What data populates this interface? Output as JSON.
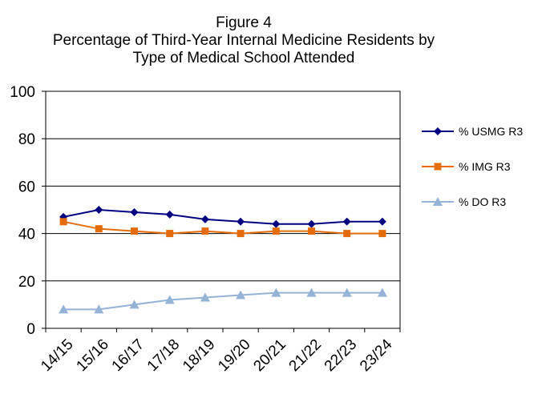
{
  "chart_data": {
    "type": "line",
    "title": "Figure 4",
    "subtitle_lines": [
      "Percentage of Third-Year Internal Medicine Residents by",
      "Type of Medical School Attended"
    ],
    "xlabel": "",
    "ylabel": "",
    "ylim": [
      0,
      100
    ],
    "yticks": [
      0,
      20,
      40,
      60,
      80,
      100
    ],
    "grid": true,
    "legend_position": "right",
    "categories": [
      "14/15",
      "15/16",
      "16/17",
      "17/18",
      "18/19",
      "19/20",
      "20/21",
      "21/22",
      "22/23",
      "23/24"
    ],
    "series": [
      {
        "name": "% USMG R3",
        "color": "#000080",
        "marker": "diamond",
        "values": [
          47,
          50,
          49,
          48,
          46,
          45,
          44,
          44,
          45,
          45
        ]
      },
      {
        "name": "% IMG R3",
        "color": "#E46C0A",
        "marker": "square",
        "values": [
          45,
          42,
          41,
          40,
          41,
          40,
          41,
          41,
          40,
          40
        ]
      },
      {
        "name": "% DO R3",
        "color": "#95B3D7",
        "marker": "triangle",
        "values": [
          8,
          8,
          10,
          12,
          13,
          14,
          15,
          15,
          15,
          15
        ]
      }
    ]
  }
}
